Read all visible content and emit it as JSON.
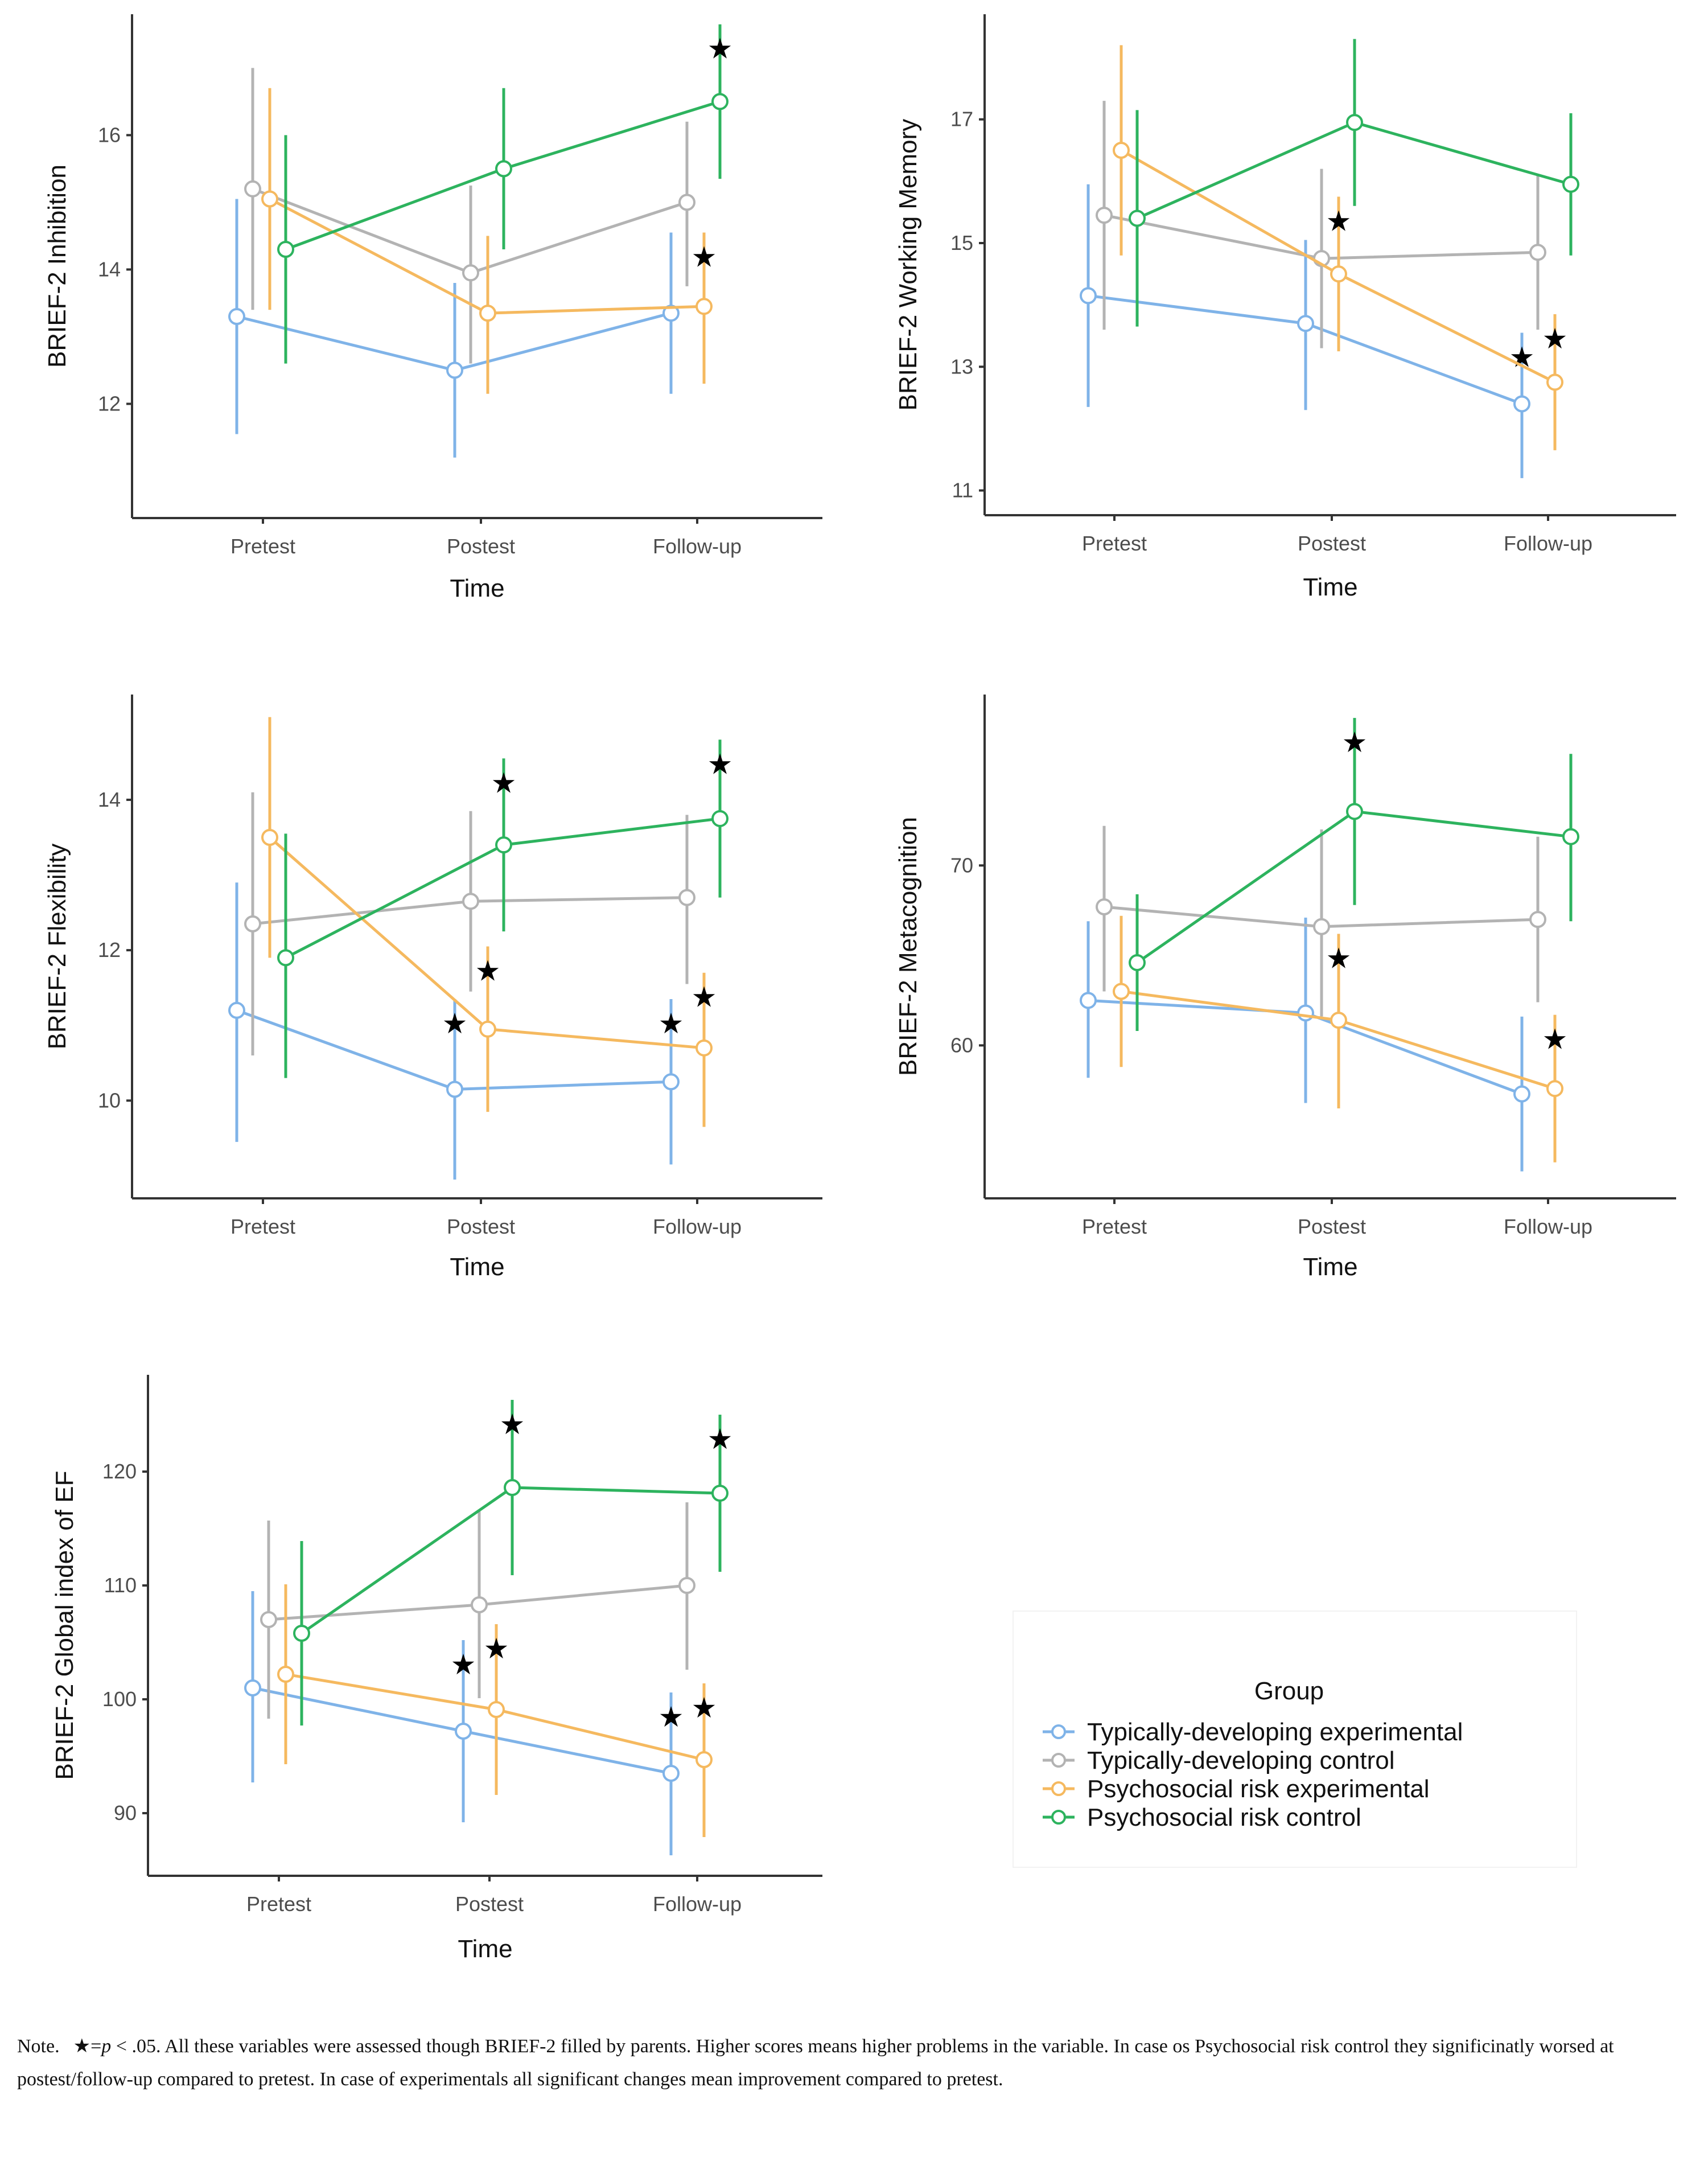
{
  "legend": {
    "title": "Group",
    "groups": [
      {
        "name": "Typically-developing experimental",
        "color": "#7fb3e8"
      },
      {
        "name": "Typically-developing control",
        "color": "#b3b3b3"
      },
      {
        "name": "Psychosocial risk experimental",
        "color": "#f5b95f"
      },
      {
        "name": "Psychosocial risk control",
        "color": "#2db35e"
      }
    ]
  },
  "chart_data": [
    {
      "type": "line",
      "title": "",
      "xlabel": "Time",
      "ylabel": "BRIEF-2 Inhibition",
      "categories": [
        "Pretest",
        "Postest",
        "Follow-up"
      ],
      "ylim": [
        10.3,
        17.8
      ],
      "yticks": [
        12,
        14,
        16
      ],
      "series": [
        {
          "name": "Typically-developing experimental",
          "values": [
            13.3,
            12.5,
            13.35
          ],
          "err": [
            [
              11.55,
              15.05
            ],
            [
              11.2,
              13.8
            ],
            [
              12.15,
              14.55
            ]
          ],
          "sig": [
            false,
            false,
            false
          ]
        },
        {
          "name": "Typically-developing control",
          "values": [
            15.2,
            13.95,
            15.0
          ],
          "err": [
            [
              13.4,
              17.0
            ],
            [
              12.6,
              15.25
            ],
            [
              13.75,
              16.2
            ]
          ],
          "sig": [
            false,
            false,
            false
          ]
        },
        {
          "name": "Psychosocial risk experimental",
          "values": [
            15.05,
            13.35,
            13.45
          ],
          "err": [
            [
              13.4,
              16.7
            ],
            [
              12.15,
              14.5
            ],
            [
              12.3,
              14.55
            ]
          ],
          "sig": [
            false,
            false,
            true
          ]
        },
        {
          "name": "Psychosocial risk control",
          "values": [
            14.3,
            15.5,
            16.5
          ],
          "err": [
            [
              12.6,
              16.0
            ],
            [
              14.3,
              16.7
            ],
            [
              15.35,
              17.65
            ]
          ],
          "sig": [
            false,
            false,
            true
          ]
        }
      ]
    },
    {
      "type": "line",
      "title": "",
      "xlabel": "Time",
      "ylabel": "BRIEF-2 Working Memory",
      "categories": [
        "Pretest",
        "Postest",
        "Follow-up"
      ],
      "ylim": [
        10.6,
        18.7
      ],
      "yticks": [
        11,
        13,
        15,
        17
      ],
      "series": [
        {
          "name": "Typically-developing experimental",
          "values": [
            14.15,
            13.7,
            12.4
          ],
          "err": [
            [
              12.35,
              15.95
            ],
            [
              12.3,
              15.05
            ],
            [
              11.2,
              13.55
            ]
          ],
          "sig": [
            false,
            false,
            true
          ]
        },
        {
          "name": "Typically-developing control",
          "values": [
            15.45,
            14.75,
            14.85
          ],
          "err": [
            [
              13.6,
              17.3
            ],
            [
              13.3,
              16.2
            ],
            [
              13.6,
              16.1
            ]
          ],
          "sig": [
            false,
            false,
            false
          ]
        },
        {
          "name": "Psychosocial risk experimental",
          "values": [
            16.5,
            14.5,
            12.75
          ],
          "err": [
            [
              14.8,
              18.2
            ],
            [
              13.25,
              15.75
            ],
            [
              11.65,
              13.85
            ]
          ],
          "sig": [
            false,
            true,
            true
          ]
        },
        {
          "name": "Psychosocial risk control",
          "values": [
            15.4,
            16.95,
            15.95
          ],
          "err": [
            [
              13.65,
              17.15
            ],
            [
              15.6,
              18.3
            ],
            [
              14.8,
              17.1
            ]
          ],
          "sig": [
            false,
            false,
            false
          ]
        }
      ]
    },
    {
      "type": "line",
      "title": "",
      "xlabel": "Time",
      "ylabel": "BRIEF-2 Flexibility",
      "categories": [
        "Pretest",
        "Postest",
        "Follow-up"
      ],
      "ylim": [
        8.7,
        15.4
      ],
      "yticks": [
        10,
        12,
        14
      ],
      "series": [
        {
          "name": "Typically-developing experimental",
          "values": [
            11.2,
            10.15,
            10.25
          ],
          "err": [
            [
              9.45,
              12.9
            ],
            [
              8.95,
              11.35
            ],
            [
              9.15,
              11.35
            ]
          ],
          "sig": [
            false,
            true,
            true
          ]
        },
        {
          "name": "Typically-developing control",
          "values": [
            12.35,
            12.65,
            12.7
          ],
          "err": [
            [
              10.6,
              14.1
            ],
            [
              11.45,
              13.85
            ],
            [
              11.55,
              13.8
            ]
          ],
          "sig": [
            false,
            false,
            false
          ]
        },
        {
          "name": "Psychosocial risk experimental",
          "values": [
            13.5,
            10.95,
            10.7
          ],
          "err": [
            [
              11.9,
              15.1
            ],
            [
              9.85,
              12.05
            ],
            [
              9.65,
              11.7
            ]
          ],
          "sig": [
            false,
            true,
            true
          ]
        },
        {
          "name": "Psychosocial risk control",
          "values": [
            11.9,
            13.4,
            13.75
          ],
          "err": [
            [
              10.3,
              13.55
            ],
            [
              12.25,
              14.55
            ],
            [
              12.7,
              14.8
            ]
          ],
          "sig": [
            false,
            true,
            true
          ]
        }
      ]
    },
    {
      "type": "line",
      "title": "",
      "xlabel": "Time",
      "ylabel": "BRIEF-2 Metacognition",
      "categories": [
        "Pretest",
        "Postest",
        "Follow-up"
      ],
      "ylim": [
        51.5,
        79.5
      ],
      "yticks": [
        60,
        70
      ],
      "series": [
        {
          "name": "Typically-developing experimental",
          "values": [
            62.5,
            61.8,
            57.3
          ],
          "err": [
            [
              58.2,
              66.9
            ],
            [
              56.8,
              67.1
            ],
            [
              53.0,
              61.6
            ]
          ],
          "sig": [
            false,
            false,
            false
          ]
        },
        {
          "name": "Typically-developing control",
          "values": [
            67.7,
            66.6,
            67.0
          ],
          "err": [
            [
              63.0,
              72.2
            ],
            [
              61.6,
              72.0
            ],
            [
              62.4,
              71.6
            ]
          ],
          "sig": [
            false,
            false,
            false
          ]
        },
        {
          "name": "Psychosocial risk experimental",
          "values": [
            63.0,
            61.4,
            57.6
          ],
          "err": [
            [
              58.8,
              67.2
            ],
            [
              56.5,
              66.2
            ],
            [
              53.5,
              61.7
            ]
          ],
          "sig": [
            false,
            true,
            true
          ]
        },
        {
          "name": "Psychosocial risk control",
          "values": [
            64.6,
            73.0,
            71.6
          ],
          "err": [
            [
              60.8,
              68.4
            ],
            [
              67.8,
              78.2
            ],
            [
              66.9,
              76.2
            ]
          ],
          "sig": [
            false,
            true,
            false
          ]
        }
      ]
    },
    {
      "type": "line",
      "title": "",
      "xlabel": "Time",
      "ylabel": "BRIEF-2 Global index of EF",
      "categories": [
        "Pretest",
        "Postest",
        "Follow-up"
      ],
      "ylim": [
        84.5,
        128.5
      ],
      "yticks": [
        90,
        100,
        110,
        120
      ],
      "series": [
        {
          "name": "Typically-developing experimental",
          "values": [
            101.0,
            97.2,
            93.5
          ],
          "err": [
            [
              92.7,
              109.5
            ],
            [
              89.2,
              105.2
            ],
            [
              86.3,
              100.6
            ]
          ],
          "sig": [
            false,
            true,
            true
          ]
        },
        {
          "name": "Typically-developing control",
          "values": [
            107.0,
            108.3,
            110.0
          ],
          "err": [
            [
              98.3,
              115.7
            ],
            [
              100.1,
              116.5
            ],
            [
              102.6,
              117.3
            ]
          ],
          "sig": [
            false,
            false,
            false
          ]
        },
        {
          "name": "Psychosocial risk experimental",
          "values": [
            102.2,
            99.1,
            94.7
          ],
          "err": [
            [
              94.3,
              110.1
            ],
            [
              91.6,
              106.6
            ],
            [
              87.9,
              101.4
            ]
          ],
          "sig": [
            false,
            true,
            true
          ]
        },
        {
          "name": "Psychosocial risk control",
          "values": [
            105.8,
            118.6,
            118.1
          ],
          "err": [
            [
              97.7,
              113.9
            ],
            [
              110.9,
              126.3
            ],
            [
              111.2,
              125.0
            ]
          ],
          "sig": [
            false,
            true,
            true
          ]
        }
      ]
    }
  ],
  "note": {
    "label": "Note.",
    "star_symbol": "★",
    "prefix": "=",
    "p_symbol": "p",
    "threshold": " < .05.",
    "text": " All these variables were assessed though BRIEF-2 filled by parents. Higher scores means higher problems in the variable. In case os Psychosocial risk control they significinatly worsed at postest/follow-up compared to pretest. In case of experimentals all significant changes mean improvement compared to pretest."
  }
}
